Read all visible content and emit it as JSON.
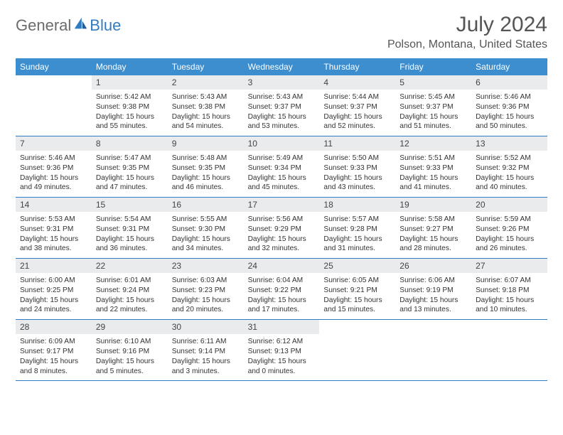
{
  "brand": {
    "word1": "General",
    "word2": "Blue"
  },
  "title": "July 2024",
  "location": "Polson, Montana, United States",
  "colors": {
    "header_bg": "#3d8ecf",
    "week_border": "#2f7cc4",
    "daynum_bg": "#e9ebed",
    "logo_gray": "#6b6b6b",
    "logo_blue": "#2f7cc4"
  },
  "daysOfWeek": [
    "Sunday",
    "Monday",
    "Tuesday",
    "Wednesday",
    "Thursday",
    "Friday",
    "Saturday"
  ],
  "weeks": [
    [
      null,
      {
        "n": "1",
        "sr": "5:42 AM",
        "ss": "9:38 PM",
        "dl": "15 hours and 55 minutes."
      },
      {
        "n": "2",
        "sr": "5:43 AM",
        "ss": "9:38 PM",
        "dl": "15 hours and 54 minutes."
      },
      {
        "n": "3",
        "sr": "5:43 AM",
        "ss": "9:37 PM",
        "dl": "15 hours and 53 minutes."
      },
      {
        "n": "4",
        "sr": "5:44 AM",
        "ss": "9:37 PM",
        "dl": "15 hours and 52 minutes."
      },
      {
        "n": "5",
        "sr": "5:45 AM",
        "ss": "9:37 PM",
        "dl": "15 hours and 51 minutes."
      },
      {
        "n": "6",
        "sr": "5:46 AM",
        "ss": "9:36 PM",
        "dl": "15 hours and 50 minutes."
      }
    ],
    [
      {
        "n": "7",
        "sr": "5:46 AM",
        "ss": "9:36 PM",
        "dl": "15 hours and 49 minutes."
      },
      {
        "n": "8",
        "sr": "5:47 AM",
        "ss": "9:35 PM",
        "dl": "15 hours and 47 minutes."
      },
      {
        "n": "9",
        "sr": "5:48 AM",
        "ss": "9:35 PM",
        "dl": "15 hours and 46 minutes."
      },
      {
        "n": "10",
        "sr": "5:49 AM",
        "ss": "9:34 PM",
        "dl": "15 hours and 45 minutes."
      },
      {
        "n": "11",
        "sr": "5:50 AM",
        "ss": "9:33 PM",
        "dl": "15 hours and 43 minutes."
      },
      {
        "n": "12",
        "sr": "5:51 AM",
        "ss": "9:33 PM",
        "dl": "15 hours and 41 minutes."
      },
      {
        "n": "13",
        "sr": "5:52 AM",
        "ss": "9:32 PM",
        "dl": "15 hours and 40 minutes."
      }
    ],
    [
      {
        "n": "14",
        "sr": "5:53 AM",
        "ss": "9:31 PM",
        "dl": "15 hours and 38 minutes."
      },
      {
        "n": "15",
        "sr": "5:54 AM",
        "ss": "9:31 PM",
        "dl": "15 hours and 36 minutes."
      },
      {
        "n": "16",
        "sr": "5:55 AM",
        "ss": "9:30 PM",
        "dl": "15 hours and 34 minutes."
      },
      {
        "n": "17",
        "sr": "5:56 AM",
        "ss": "9:29 PM",
        "dl": "15 hours and 32 minutes."
      },
      {
        "n": "18",
        "sr": "5:57 AM",
        "ss": "9:28 PM",
        "dl": "15 hours and 31 minutes."
      },
      {
        "n": "19",
        "sr": "5:58 AM",
        "ss": "9:27 PM",
        "dl": "15 hours and 28 minutes."
      },
      {
        "n": "20",
        "sr": "5:59 AM",
        "ss": "9:26 PM",
        "dl": "15 hours and 26 minutes."
      }
    ],
    [
      {
        "n": "21",
        "sr": "6:00 AM",
        "ss": "9:25 PM",
        "dl": "15 hours and 24 minutes."
      },
      {
        "n": "22",
        "sr": "6:01 AM",
        "ss": "9:24 PM",
        "dl": "15 hours and 22 minutes."
      },
      {
        "n": "23",
        "sr": "6:03 AM",
        "ss": "9:23 PM",
        "dl": "15 hours and 20 minutes."
      },
      {
        "n": "24",
        "sr": "6:04 AM",
        "ss": "9:22 PM",
        "dl": "15 hours and 17 minutes."
      },
      {
        "n": "25",
        "sr": "6:05 AM",
        "ss": "9:21 PM",
        "dl": "15 hours and 15 minutes."
      },
      {
        "n": "26",
        "sr": "6:06 AM",
        "ss": "9:19 PM",
        "dl": "15 hours and 13 minutes."
      },
      {
        "n": "27",
        "sr": "6:07 AM",
        "ss": "9:18 PM",
        "dl": "15 hours and 10 minutes."
      }
    ],
    [
      {
        "n": "28",
        "sr": "6:09 AM",
        "ss": "9:17 PM",
        "dl": "15 hours and 8 minutes."
      },
      {
        "n": "29",
        "sr": "6:10 AM",
        "ss": "9:16 PM",
        "dl": "15 hours and 5 minutes."
      },
      {
        "n": "30",
        "sr": "6:11 AM",
        "ss": "9:14 PM",
        "dl": "15 hours and 3 minutes."
      },
      {
        "n": "31",
        "sr": "6:12 AM",
        "ss": "9:13 PM",
        "dl": "15 hours and 0 minutes."
      },
      null,
      null,
      null
    ]
  ],
  "labels": {
    "sunrise": "Sunrise:",
    "sunset": "Sunset:",
    "daylight": "Daylight:"
  }
}
